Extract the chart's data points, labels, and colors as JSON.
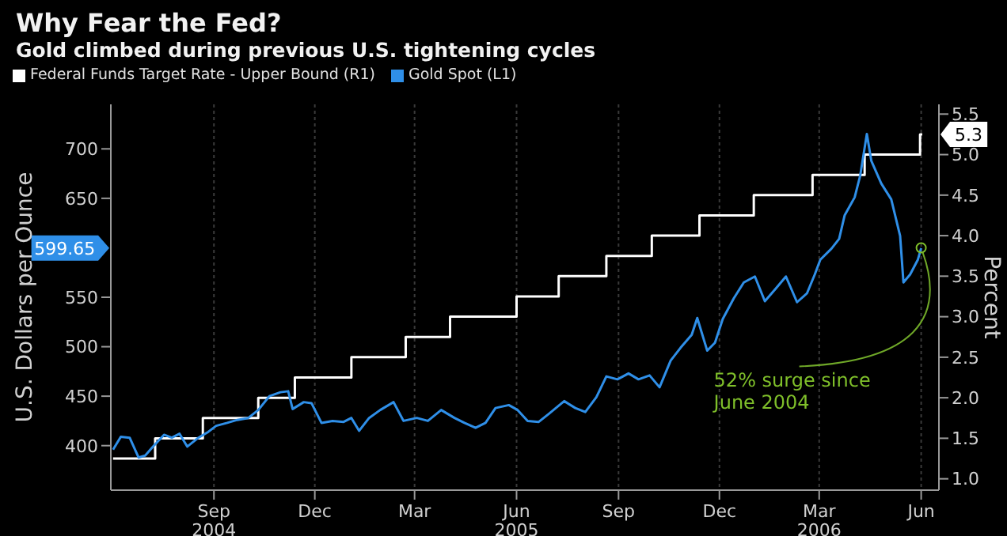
{
  "chart_data": {
    "type": "line",
    "title": "Why Fear the Fed?",
    "subtitle": "Gold climbed during previous U.S. tightening cycles",
    "ylabel": "U.S. Dollars per Ounce",
    "y2label": "Percent",
    "legend": "top left",
    "grid": true,
    "xlim": [
      "2004-05-31",
      "2006-06-17"
    ],
    "xticks": [
      {
        "value": "2004-09-01",
        "label": "Sep\n2004"
      },
      {
        "value": "2004-12-01",
        "label": "Dec"
      },
      {
        "value": "2005-03-01",
        "label": "Mar"
      },
      {
        "value": "2005-06-01",
        "label": "Jun\n2005"
      },
      {
        "value": "2005-09-01",
        "label": "Sep"
      },
      {
        "value": "2005-12-01",
        "label": "Dec"
      },
      {
        "value": "2006-03-01",
        "label": "Mar\n2006"
      },
      {
        "value": "2006-06-01",
        "label": "Jun"
      }
    ],
    "ylim": [
      355,
      745
    ],
    "yticks": [
      400,
      450,
      500,
      550,
      650,
      700
    ],
    "y2lim": [
      0.86,
      5.62
    ],
    "y2ticks": [
      {
        "value": 1,
        "label": "1.0"
      },
      1.5,
      {
        "value": 2,
        "label": "2.0"
      },
      2.5,
      {
        "value": 3,
        "label": "3.0"
      },
      3.5,
      {
        "value": 4,
        "label": "4.0"
      },
      4.5,
      {
        "value": 5,
        "label": "5.0"
      },
      5.5
    ],
    "series": [
      {
        "name": "Federal Funds Target Rate - Upper Bound (R1)",
        "type": "step",
        "axis": "y2",
        "color": "#ffffff",
        "x": [
          "2004-06-02",
          "2004-07-10",
          "2004-08-22",
          "2004-10-11",
          "2004-11-13",
          "2005-01-03",
          "2005-02-21",
          "2005-04-02",
          "2005-06-01",
          "2005-07-09",
          "2005-08-21",
          "2005-10-01",
          "2005-11-13",
          "2006-01-01",
          "2006-02-23",
          "2006-04-11",
          "2006-05-31",
          "2006-06-02"
        ],
        "values": [
          1.25,
          1.5,
          1.75,
          2.0,
          2.25,
          2.5,
          2.75,
          3.0,
          3.25,
          3.5,
          3.75,
          4.0,
          4.25,
          4.5,
          4.75,
          5.0,
          5.25,
          5.25
        ]
      },
      {
        "name": "Gold Spot (L1)",
        "color": "#2f8fe8",
        "x": [
          "2004-06-02",
          "2004-06-09",
          "2004-06-17",
          "2004-06-25",
          "2004-07-01",
          "2004-07-08",
          "2004-07-18",
          "2004-07-25",
          "2004-08-01",
          "2004-08-08",
          "2004-08-18",
          "2004-08-27",
          "2004-09-03",
          "2004-09-13",
          "2004-09-22",
          "2004-10-02",
          "2004-10-11",
          "2004-10-21",
          "2004-10-31",
          "2004-11-07",
          "2004-11-11",
          "2004-11-21",
          "2004-11-28",
          "2004-12-07",
          "2004-12-17",
          "2004-12-27",
          "2005-01-03",
          "2005-01-10",
          "2005-01-19",
          "2005-01-29",
          "2005-02-10",
          "2005-02-19",
          "2005-03-03",
          "2005-03-13",
          "2005-03-25",
          "2005-04-06",
          "2005-04-15",
          "2005-04-25",
          "2005-05-04",
          "2005-05-13",
          "2005-05-25",
          "2005-06-02",
          "2005-06-11",
          "2005-06-21",
          "2005-06-30",
          "2005-07-14",
          "2005-07-24",
          "2005-08-02",
          "2005-08-12",
          "2005-08-21",
          "2005-08-31",
          "2005-09-10",
          "2005-09-19",
          "2005-09-29",
          "2005-10-08",
          "2005-10-18",
          "2005-10-27",
          "2005-11-06",
          "2005-11-11",
          "2005-11-20",
          "2005-11-27",
          "2005-12-04",
          "2005-12-14",
          "2005-12-23",
          "2006-01-02",
          "2006-01-11",
          "2006-01-21",
          "2006-01-30",
          "2006-02-09",
          "2006-02-18",
          "2006-02-25",
          "2006-03-02",
          "2006-03-12",
          "2006-03-19",
          "2006-03-24",
          "2006-04-02",
          "2006-04-07",
          "2006-04-13",
          "2006-04-17",
          "2006-04-26",
          "2006-05-05",
          "2006-05-13",
          "2006-05-16",
          "2006-05-22",
          "2006-05-29",
          "2006-06-01"
        ],
        "values": [
          396,
          409,
          408,
          388,
          390,
          399,
          411,
          408,
          412,
          399,
          408,
          414,
          420,
          423,
          426,
          428,
          436,
          450,
          454,
          455,
          437,
          444,
          443,
          423,
          425,
          424,
          428,
          415,
          428,
          436,
          444,
          425,
          428,
          425,
          436,
          428,
          423,
          418,
          423,
          438,
          441,
          436,
          425,
          424,
          432,
          445,
          438,
          434,
          449,
          470,
          467,
          473,
          467,
          471,
          459,
          486,
          499,
          512,
          529,
          496,
          504,
          528,
          549,
          565,
          571,
          546,
          559,
          571,
          545,
          554,
          573,
          588,
          599,
          609,
          633,
          651,
          673,
          715,
          688,
          665,
          649,
          612,
          565,
          573,
          588,
          599.65
        ]
      }
    ],
    "annotations": [
      "599.65",
      "5.3",
      {
        "text": "52% surge since June 2004",
        "x": "2006-06-01",
        "y": 600
      }
    ]
  }
}
